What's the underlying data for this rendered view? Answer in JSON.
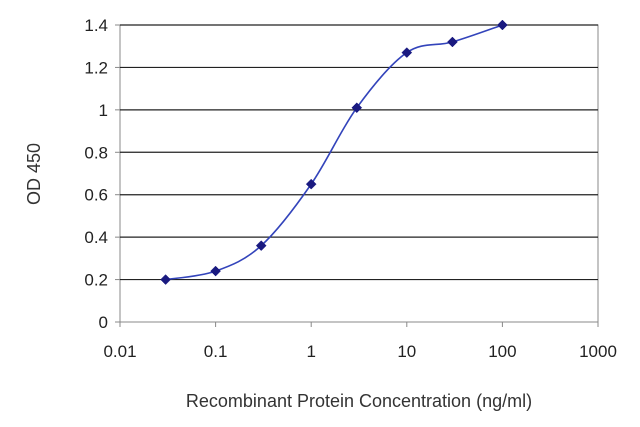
{
  "chart_data": {
    "type": "line",
    "xlabel": "Recombinant Protein Concentration (ng/ml)",
    "ylabel": "OD 450",
    "xscale": "log",
    "xlim": [
      0.01,
      1000
    ],
    "ylim": [
      0,
      1.4
    ],
    "grid": "horizontal",
    "x_tick_labels": [
      "0.01",
      "0.1",
      "1",
      "10",
      "100",
      "1000"
    ],
    "y_tick_labels": [
      "0",
      "0.2",
      "0.4",
      "0.6",
      "0.8",
      "1",
      "1.2",
      "1.4"
    ],
    "series": [
      {
        "x": [
          0.03,
          0.1,
          0.3,
          1,
          3,
          10,
          30,
          100
        ],
        "y": [
          0.2,
          0.24,
          0.36,
          0.65,
          1.01,
          1.27,
          1.32,
          1.4
        ]
      }
    ],
    "colors": {
      "series": "#3344bb",
      "marker": "#1a1a80",
      "grid": "#222222",
      "frame": "#888888"
    }
  }
}
